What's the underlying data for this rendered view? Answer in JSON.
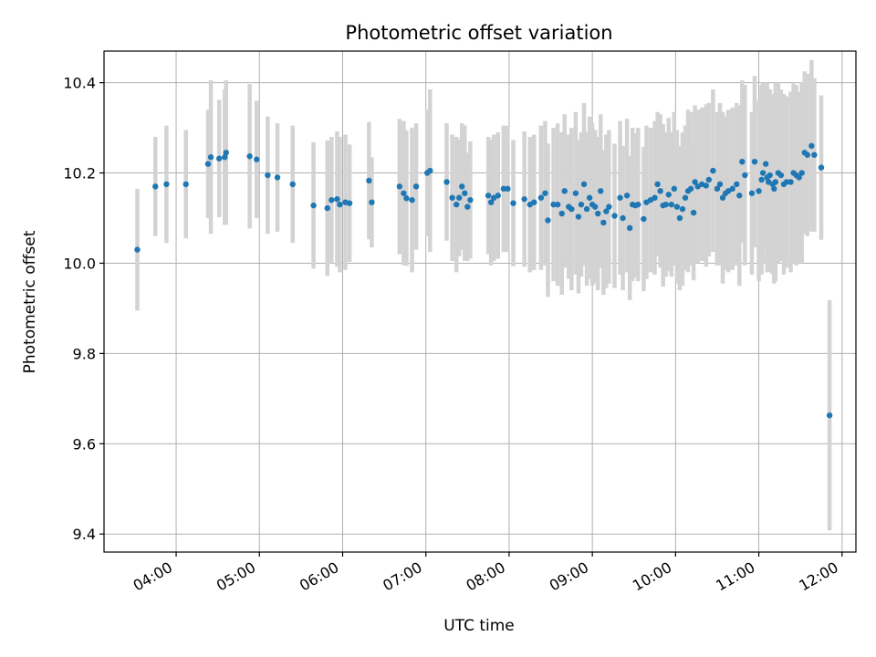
{
  "chart_data": {
    "type": "scatter",
    "title": "Photometric offset variation",
    "xlabel": "UTC time",
    "ylabel": "Photometric offset",
    "x_tick_labels": [
      "04:00",
      "05:00",
      "06:00",
      "07:00",
      "08:00",
      "09:00",
      "10:00",
      "11:00",
      "12:00"
    ],
    "y_ticks": [
      9.4,
      9.6,
      9.8,
      10.0,
      10.2,
      10.4
    ],
    "y_tick_labels": [
      "9.4",
      "9.6",
      "9.8",
      "10.0",
      "10.2",
      "10.4"
    ],
    "xlim": [
      "03:08",
      "12:10"
    ],
    "ylim": [
      9.36,
      10.47
    ],
    "grid": true,
    "colors": {
      "point": "#1f77b4",
      "errorbar": "#d3d3d3",
      "grid": "#b0b0b0"
    },
    "points": [
      [
        "03:32",
        10.03,
        0.135
      ],
      [
        "03:45",
        10.17,
        0.11
      ],
      [
        "03:53",
        10.175,
        0.13
      ],
      [
        "04:07",
        10.175,
        0.12
      ],
      [
        "04:23",
        10.22,
        0.12
      ],
      [
        "04:25",
        10.235,
        0.17
      ],
      [
        "04:31",
        10.232,
        0.13
      ],
      [
        "04:35",
        10.235,
        0.15
      ],
      [
        "04:36",
        10.245,
        0.16
      ],
      [
        "04:53",
        10.237,
        0.16
      ],
      [
        "04:58",
        10.23,
        0.13
      ],
      [
        "05:06",
        10.195,
        0.13
      ],
      [
        "05:13",
        10.19,
        0.12
      ],
      [
        "05:24",
        10.175,
        0.13
      ],
      [
        "05:39",
        10.128,
        0.14
      ],
      [
        "05:49",
        10.122,
        0.15
      ],
      [
        "05:52",
        10.14,
        0.14
      ],
      [
        "05:56",
        10.142,
        0.15
      ],
      [
        "05:58",
        10.13,
        0.15
      ],
      [
        "06:02",
        10.135,
        0.15
      ],
      [
        "06:05",
        10.133,
        0.13
      ],
      [
        "06:19",
        10.183,
        0.13
      ],
      [
        "06:21",
        10.135,
        0.1
      ],
      [
        "06:41",
        10.17,
        0.15
      ],
      [
        "06:44",
        10.155,
        0.16
      ],
      [
        "06:46",
        10.144,
        0.15
      ],
      [
        "06:50",
        10.14,
        0.16
      ],
      [
        "06:53",
        10.17,
        0.14
      ],
      [
        "07:01",
        10.2,
        0.14
      ],
      [
        "07:03",
        10.205,
        0.18
      ],
      [
        "07:15",
        10.18,
        0.13
      ],
      [
        "07:19",
        10.145,
        0.14
      ],
      [
        "07:22",
        10.13,
        0.15
      ],
      [
        "07:24",
        10.145,
        0.13
      ],
      [
        "07:26",
        10.17,
        0.14
      ],
      [
        "07:28",
        10.155,
        0.15
      ],
      [
        "07:30",
        10.125,
        0.12
      ],
      [
        "07:32",
        10.14,
        0.13
      ],
      [
        "07:45",
        10.15,
        0.13
      ],
      [
        "07:47",
        10.135,
        0.14
      ],
      [
        "07:49",
        10.145,
        0.14
      ],
      [
        "07:52",
        10.15,
        0.14
      ],
      [
        "07:56",
        10.165,
        0.14
      ],
      [
        "07:59",
        10.165,
        0.14
      ],
      [
        "08:03",
        10.133,
        0.14
      ],
      [
        "08:11",
        10.142,
        0.15
      ],
      [
        "08:15",
        10.13,
        0.15
      ],
      [
        "08:18",
        10.135,
        0.15
      ],
      [
        "08:23",
        10.145,
        0.16
      ],
      [
        "08:26",
        10.155,
        0.16
      ],
      [
        "08:28",
        10.095,
        0.17
      ],
      [
        "08:32",
        10.13,
        0.17
      ],
      [
        "08:35",
        10.13,
        0.18
      ],
      [
        "08:38",
        10.11,
        0.18
      ],
      [
        "08:40",
        10.16,
        0.17
      ],
      [
        "08:43",
        10.125,
        0.16
      ],
      [
        "08:45",
        10.12,
        0.18
      ],
      [
        "08:48",
        10.155,
        0.18
      ],
      [
        "08:50",
        10.103,
        0.17
      ],
      [
        "08:52",
        10.13,
        0.16
      ],
      [
        "08:54",
        10.175,
        0.18
      ],
      [
        "08:56",
        10.12,
        0.17
      ],
      [
        "08:58",
        10.145,
        0.18
      ],
      [
        "09:00",
        10.13,
        0.18
      ],
      [
        "09:02",
        10.125,
        0.17
      ],
      [
        "09:04",
        10.11,
        0.17
      ],
      [
        "09:06",
        10.16,
        0.17
      ],
      [
        "09:08",
        10.09,
        0.16
      ],
      [
        "09:10",
        10.115,
        0.17
      ],
      [
        "09:12",
        10.125,
        0.17
      ],
      [
        "09:16",
        10.105,
        0.16
      ],
      [
        "09:20",
        10.145,
        0.17
      ],
      [
        "09:22",
        10.1,
        0.16
      ],
      [
        "09:25",
        10.15,
        0.17
      ],
      [
        "09:27",
        10.078,
        0.16
      ],
      [
        "09:29",
        10.13,
        0.17
      ],
      [
        "09:31",
        10.128,
        0.16
      ],
      [
        "09:33",
        10.13,
        0.17
      ],
      [
        "09:37",
        10.098,
        0.16
      ],
      [
        "09:39",
        10.135,
        0.17
      ],
      [
        "09:42",
        10.14,
        0.16
      ],
      [
        "09:45",
        10.145,
        0.17
      ],
      [
        "09:47",
        10.175,
        0.16
      ],
      [
        "09:49",
        10.16,
        0.17
      ],
      [
        "09:51",
        10.128,
        0.18
      ],
      [
        "09:53",
        10.13,
        0.16
      ],
      [
        "09:55",
        10.152,
        0.17
      ],
      [
        "09:57",
        10.13,
        0.16
      ],
      [
        "09:59",
        10.165,
        0.17
      ],
      [
        "10:01",
        10.125,
        0.17
      ],
      [
        "10:03",
        10.1,
        0.16
      ],
      [
        "10:05",
        10.12,
        0.17
      ],
      [
        "10:07",
        10.145,
        0.16
      ],
      [
        "10:09",
        10.16,
        0.18
      ],
      [
        "10:11",
        10.165,
        0.17
      ],
      [
        "10:13",
        10.112,
        0.15
      ],
      [
        "10:14",
        10.18,
        0.17
      ],
      [
        "10:16",
        10.17,
        0.17
      ],
      [
        "10:19",
        10.175,
        0.17
      ],
      [
        "10:22",
        10.172,
        0.18
      ],
      [
        "10:24",
        10.185,
        0.17
      ],
      [
        "10:27",
        10.205,
        0.18
      ],
      [
        "10:30",
        10.165,
        0.17
      ],
      [
        "10:32",
        10.175,
        0.18
      ],
      [
        "10:34",
        10.145,
        0.19
      ],
      [
        "10:36",
        10.155,
        0.17
      ],
      [
        "10:38",
        10.16,
        0.18
      ],
      [
        "10:41",
        10.165,
        0.18
      ],
      [
        "10:44",
        10.175,
        0.18
      ],
      [
        "10:46",
        10.15,
        0.2
      ],
      [
        "10:48",
        10.225,
        0.18
      ],
      [
        "10:50",
        10.195,
        0.2
      ],
      [
        "10:55",
        10.155,
        0.18
      ],
      [
        "10:57",
        10.225,
        0.19
      ],
      [
        "11:00",
        10.16,
        0.2
      ],
      [
        "11:02",
        10.185,
        0.21
      ],
      [
        "11:03",
        10.2,
        0.2
      ],
      [
        "11:05",
        10.22,
        0.18
      ],
      [
        "11:06",
        10.19,
        0.21
      ],
      [
        "11:07",
        10.18,
        0.2
      ],
      [
        "11:08",
        10.195,
        0.19
      ],
      [
        "11:10",
        10.175,
        0.2
      ],
      [
        "11:11",
        10.165,
        0.21
      ],
      [
        "11:12",
        10.18,
        0.22
      ],
      [
        "11:14",
        10.2,
        0.2
      ],
      [
        "11:16",
        10.195,
        0.19
      ],
      [
        "11:18",
        10.175,
        0.2
      ],
      [
        "11:20",
        10.18,
        0.19
      ],
      [
        "11:23",
        10.18,
        0.2
      ],
      [
        "11:25",
        10.2,
        0.2
      ],
      [
        "11:27",
        10.195,
        0.2
      ],
      [
        "11:29",
        10.19,
        0.19
      ],
      [
        "11:31",
        10.2,
        0.2
      ],
      [
        "11:33",
        10.245,
        0.18
      ],
      [
        "11:35",
        10.24,
        0.18
      ],
      [
        "11:38",
        10.26,
        0.19
      ],
      [
        "11:40",
        10.24,
        0.17
      ],
      [
        "11:45",
        10.212,
        0.16
      ],
      [
        "11:51",
        9.663,
        0.255
      ]
    ]
  }
}
